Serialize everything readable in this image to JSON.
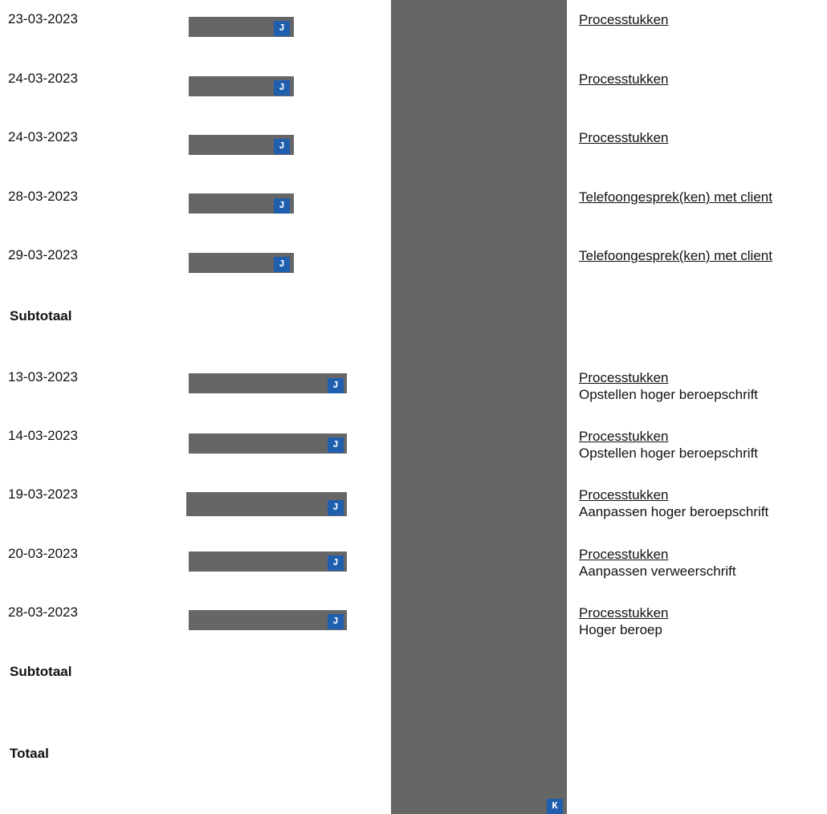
{
  "section1": {
    "rows": [
      {
        "date": "23-03-2023",
        "badge": "J",
        "category": "Processtukken"
      },
      {
        "date": "24-03-2023",
        "badge": "J",
        "category": "Processtukken"
      },
      {
        "date": "24-03-2023",
        "badge": "J",
        "category": "Processtukken"
      },
      {
        "date": "28-03-2023",
        "badge": "J",
        "category": "Telefoongesprek(ken) met client"
      },
      {
        "date": "29-03-2023",
        "badge": "J",
        "category": "Telefoongesprek(ken) met client"
      }
    ],
    "subtotal_label": "Subtotaal"
  },
  "section2": {
    "rows": [
      {
        "date": "13-03-2023",
        "badge": "J",
        "category": "Processtukken",
        "description": "Opstellen hoger beroepschrift"
      },
      {
        "date": "14-03-2023",
        "badge": "J",
        "category": "Processtukken",
        "description": "Opstellen hoger beroepschrift"
      },
      {
        "date": "19-03-2023",
        "badge": "J",
        "category": "Processtukken",
        "description": "Aanpassen hoger beroepschrift"
      },
      {
        "date": "20-03-2023",
        "badge": "J",
        "category": "Processtukken",
        "description": "Aanpassen verweerschrift"
      },
      {
        "date": "28-03-2023",
        "badge": "J",
        "category": "Processtukken",
        "description": "Hoger beroep"
      }
    ],
    "subtotal_label": "Subtotaal"
  },
  "total_label": "Totaal",
  "column_badge": "K",
  "colors": {
    "redaction": "#666666",
    "badge": "#1f5fae"
  }
}
